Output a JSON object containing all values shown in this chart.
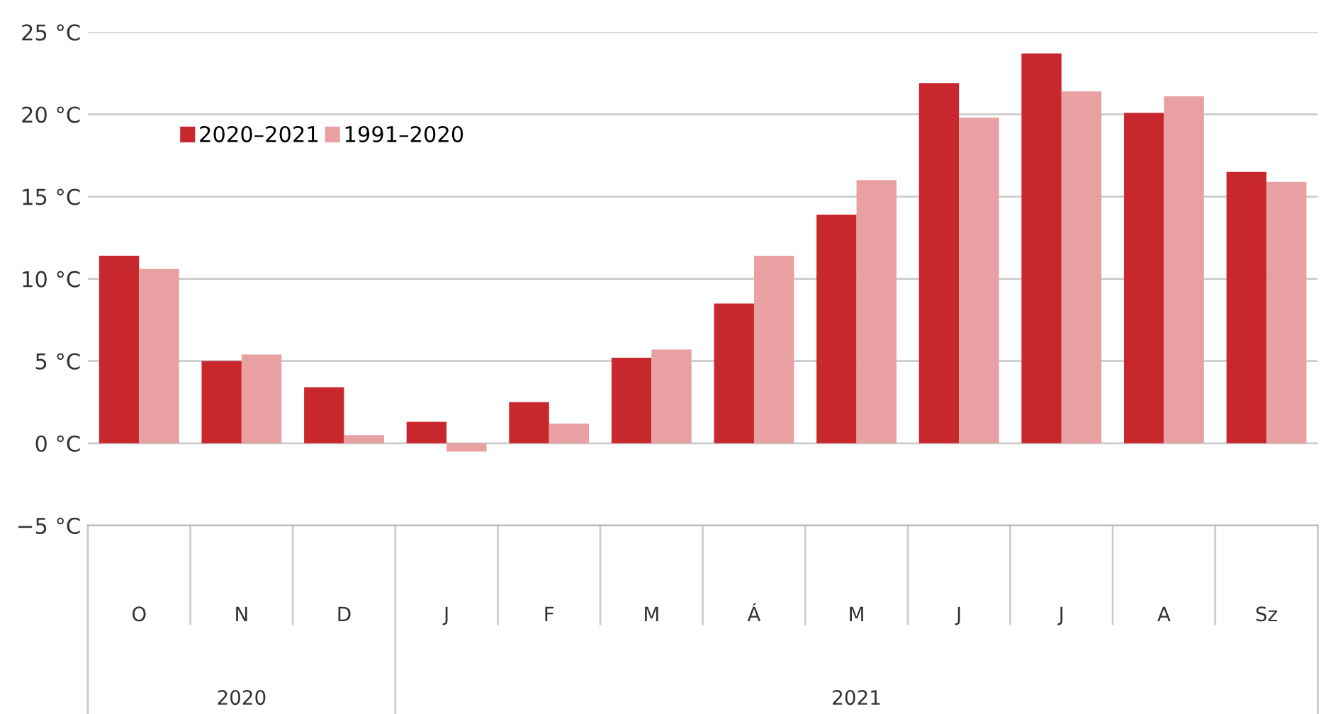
{
  "chart_data": {
    "type": "bar",
    "categories": [
      "O",
      "N",
      "D",
      "J",
      "F",
      "M",
      "Á",
      "M",
      "J",
      "J",
      "A",
      "Sz"
    ],
    "series": [
      {
        "name": "2020–2021",
        "color": "#c8282d",
        "values": [
          11.4,
          5.0,
          3.4,
          1.3,
          2.5,
          5.2,
          8.5,
          13.9,
          21.9,
          23.7,
          20.1,
          16.5
        ]
      },
      {
        "name": "1991–2020",
        "color": "#e9a0a2",
        "values": [
          10.6,
          5.4,
          0.5,
          -0.5,
          1.2,
          5.7,
          11.4,
          16.0,
          19.8,
          21.4,
          21.1,
          15.9
        ]
      }
    ],
    "ylim": [
      -5,
      25
    ],
    "yticks": [
      {
        "value": -5,
        "label": "−5 °C"
      },
      {
        "value": 0,
        "label": "0 °C"
      },
      {
        "value": 5,
        "label": "5 °C"
      },
      {
        "value": 10,
        "label": "10 °C"
      },
      {
        "value": 15,
        "label": "15 °C"
      },
      {
        "value": 20,
        "label": "20 °C"
      },
      {
        "value": 25,
        "label": "25 °C"
      }
    ],
    "grid": "y",
    "legend": "top left",
    "annotations": [
      "2020",
      "2021"
    ]
  }
}
